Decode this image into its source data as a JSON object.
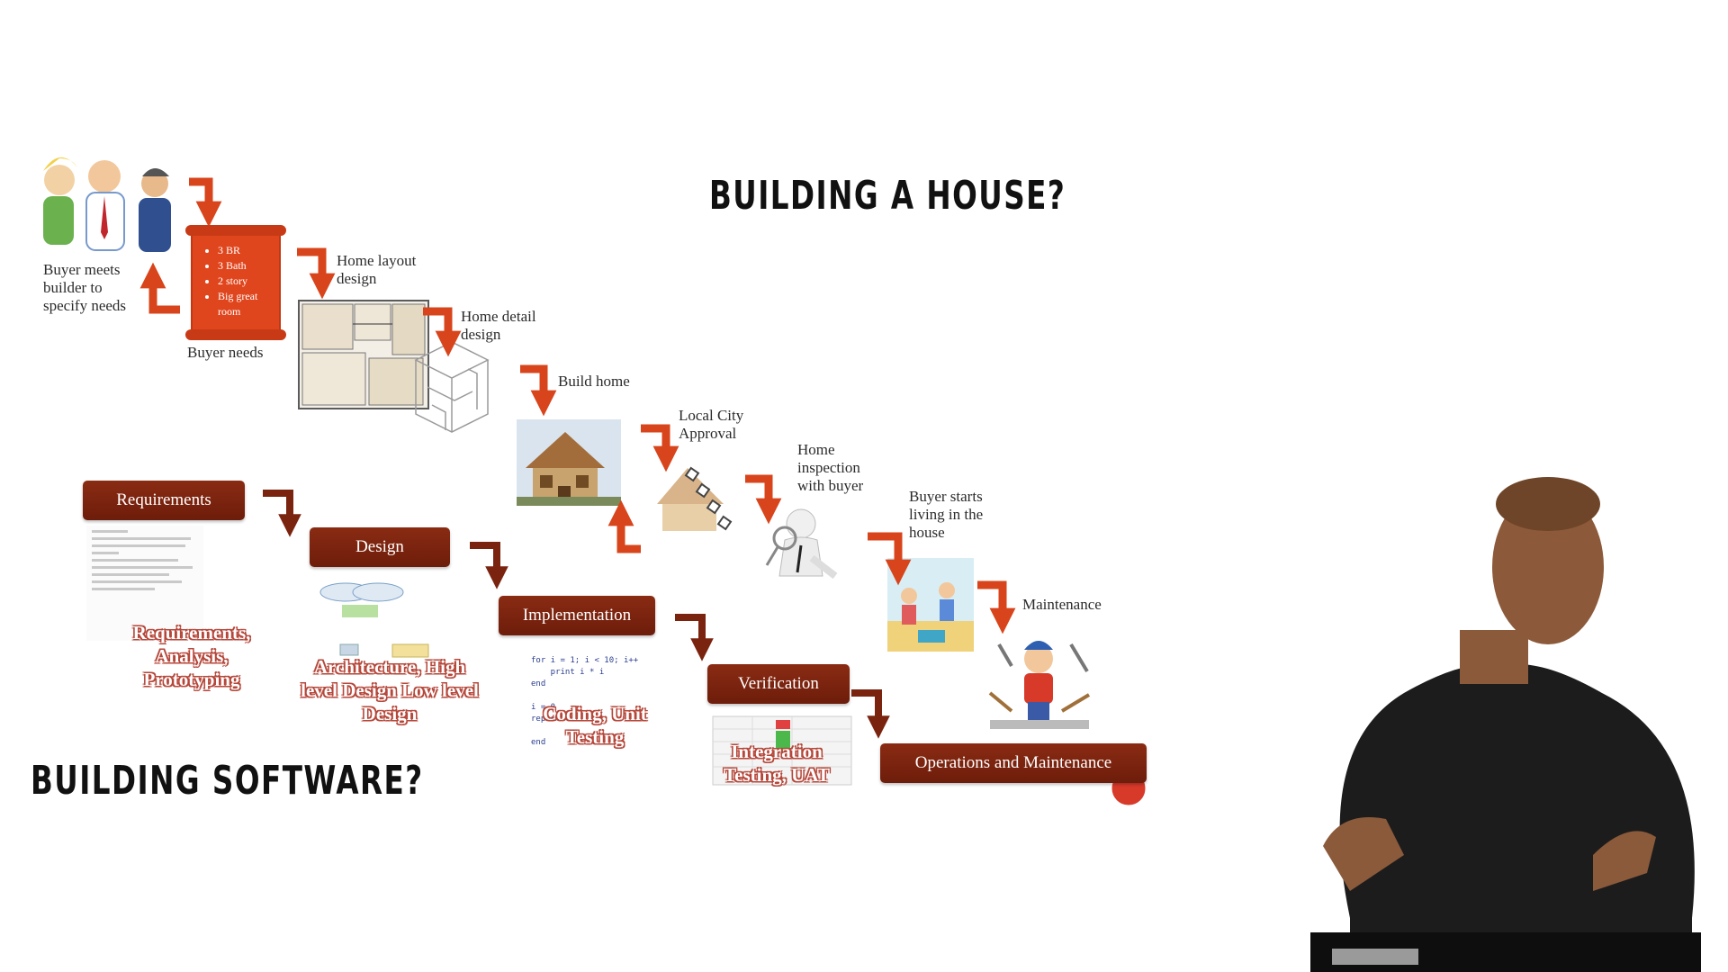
{
  "house": {
    "title": "BUILDING A HOUSE?",
    "steps": {
      "meet": "Buyer meets builder to specify needs",
      "needs_label": "Buyer needs",
      "needs_list": [
        "3 BR",
        "3 Bath",
        "2 story",
        "Big great room"
      ],
      "layout": "Home layout design",
      "detail": "Home detail design",
      "build": "Build home",
      "approval": "Local City Approval",
      "inspection": "Home inspection with buyer",
      "living": "Buyer starts living in the house",
      "maintenance": "Maintenance"
    }
  },
  "software": {
    "title": "BUILDING SOFTWARE?",
    "stages": [
      {
        "label": "Requirements",
        "activity": "Requirements, Analysis, Prototyping"
      },
      {
        "label": "Design",
        "activity": "Architecture, High level Design Low level Design"
      },
      {
        "label": "Implementation",
        "activity": "Coding, Unit Testing"
      },
      {
        "label": "Verification",
        "activity": "Integration Testing, UAT"
      },
      {
        "label": "Operations and Maintenance",
        "activity": ""
      }
    ],
    "code_lines": [
      "for i = 1; i < 10; i++",
      "    print i * i",
      "end",
      "",
      "i = 0",
      "repeat",
      "",
      "end"
    ]
  },
  "colors": {
    "arrow": "#d8441b",
    "stage_box": "#7a2410",
    "activity_outline": "#b5473a"
  }
}
